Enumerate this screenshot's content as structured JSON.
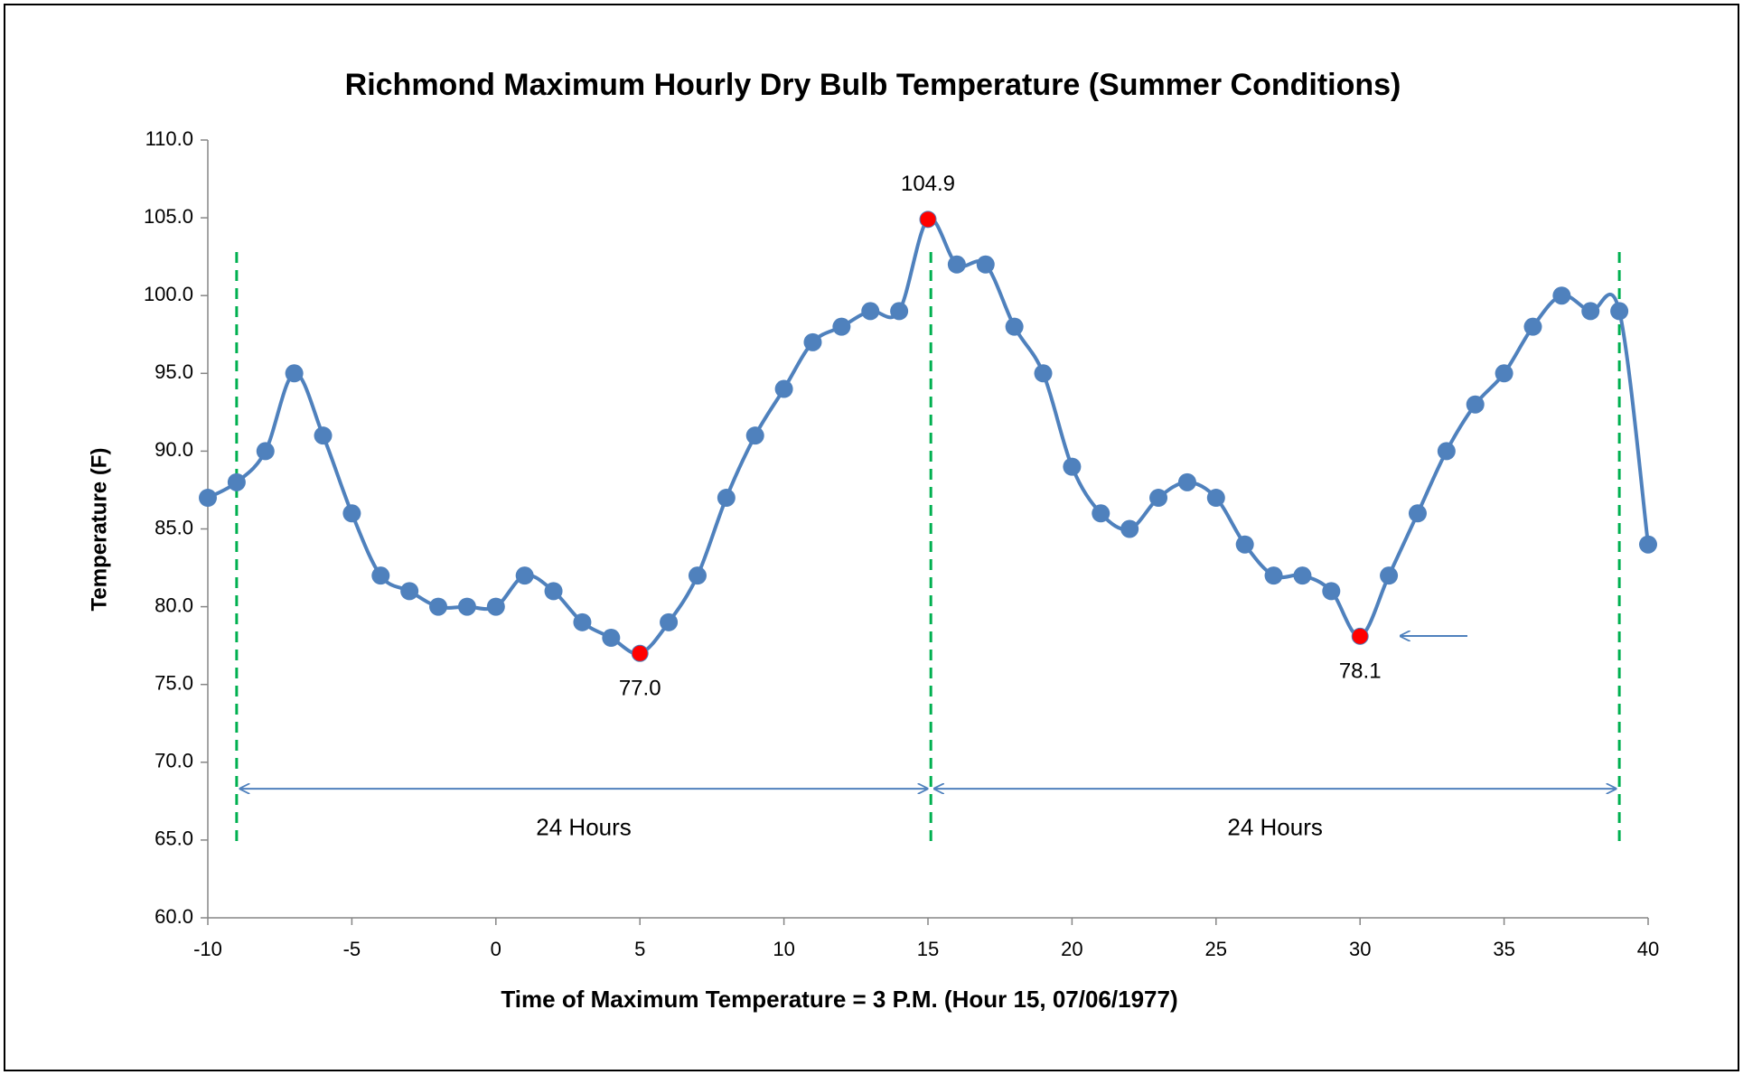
{
  "chart_data": {
    "type": "line",
    "title": "Richmond Maximum Hourly Dry Bulb Temperature (Summer Conditions)",
    "x_label": "Time of Maximum Temperature = 3 P.M. (Hour 15, 07/06/1977)",
    "y_label": "Temperature (F)",
    "x": [
      -10,
      -9,
      -8,
      -7,
      -6,
      -5,
      -4,
      -3,
      -2,
      -1,
      0,
      1,
      2,
      3,
      4,
      5,
      6,
      7,
      8,
      9,
      10,
      11,
      12,
      13,
      14,
      15,
      16,
      17,
      18,
      19,
      20,
      21,
      22,
      23,
      24,
      25,
      26,
      27,
      28,
      29,
      30,
      31,
      32,
      33,
      34,
      35,
      36,
      37,
      38,
      39,
      40
    ],
    "series": [
      {
        "name": "Temperature",
        "color": "#4f81bd",
        "highlight_color": "#ff0000",
        "values": [
          87,
          88,
          90,
          95,
          91,
          86,
          82,
          81,
          80,
          80,
          80,
          82,
          81,
          79,
          78,
          77.0,
          79,
          82,
          87,
          91,
          94,
          97,
          98,
          99,
          99,
          104.9,
          102,
          102,
          98,
          95,
          89,
          86,
          85,
          87,
          88,
          87,
          84,
          82,
          82,
          81,
          78.1,
          82,
          86,
          90,
          93,
          95,
          98,
          100,
          99,
          99,
          84
        ],
        "value_labels": [
          null,
          null,
          null,
          null,
          null,
          null,
          null,
          null,
          null,
          null,
          null,
          null,
          null,
          null,
          null,
          "77.0",
          null,
          null,
          null,
          null,
          null,
          null,
          null,
          null,
          null,
          "104.9",
          null,
          null,
          null,
          null,
          null,
          null,
          null,
          null,
          null,
          null,
          null,
          null,
          null,
          null,
          "78.1",
          null,
          null,
          null,
          null,
          null,
          null,
          null,
          null,
          null,
          null
        ]
      }
    ],
    "xlim": [
      -10,
      40
    ],
    "xticks": [
      -10,
      -5,
      0,
      5,
      10,
      15,
      20,
      25,
      30,
      35,
      40
    ],
    "ylim": [
      60,
      110
    ],
    "yticks": [
      {
        "value": 60,
        "label": "60.0"
      },
      {
        "value": 65,
        "label": "65.0"
      },
      {
        "value": 70,
        "label": "70.0"
      },
      {
        "value": 75,
        "label": "75.0"
      },
      {
        "value": 80,
        "label": "80.0"
      },
      {
        "value": 85,
        "label": "85.0"
      },
      {
        "value": 90,
        "label": "90.0"
      },
      {
        "value": 95,
        "label": "95.0"
      },
      {
        "value": 100,
        "label": "100.0"
      },
      {
        "value": 105,
        "label": "105.0"
      },
      {
        "value": 110,
        "label": "110.0"
      }
    ],
    "reference_lines_x": [
      -9,
      15.1,
      39
    ],
    "reference_line_color": "#00b050",
    "span_annotations": [
      "24 Hours",
      "24 Hours"
    ]
  }
}
